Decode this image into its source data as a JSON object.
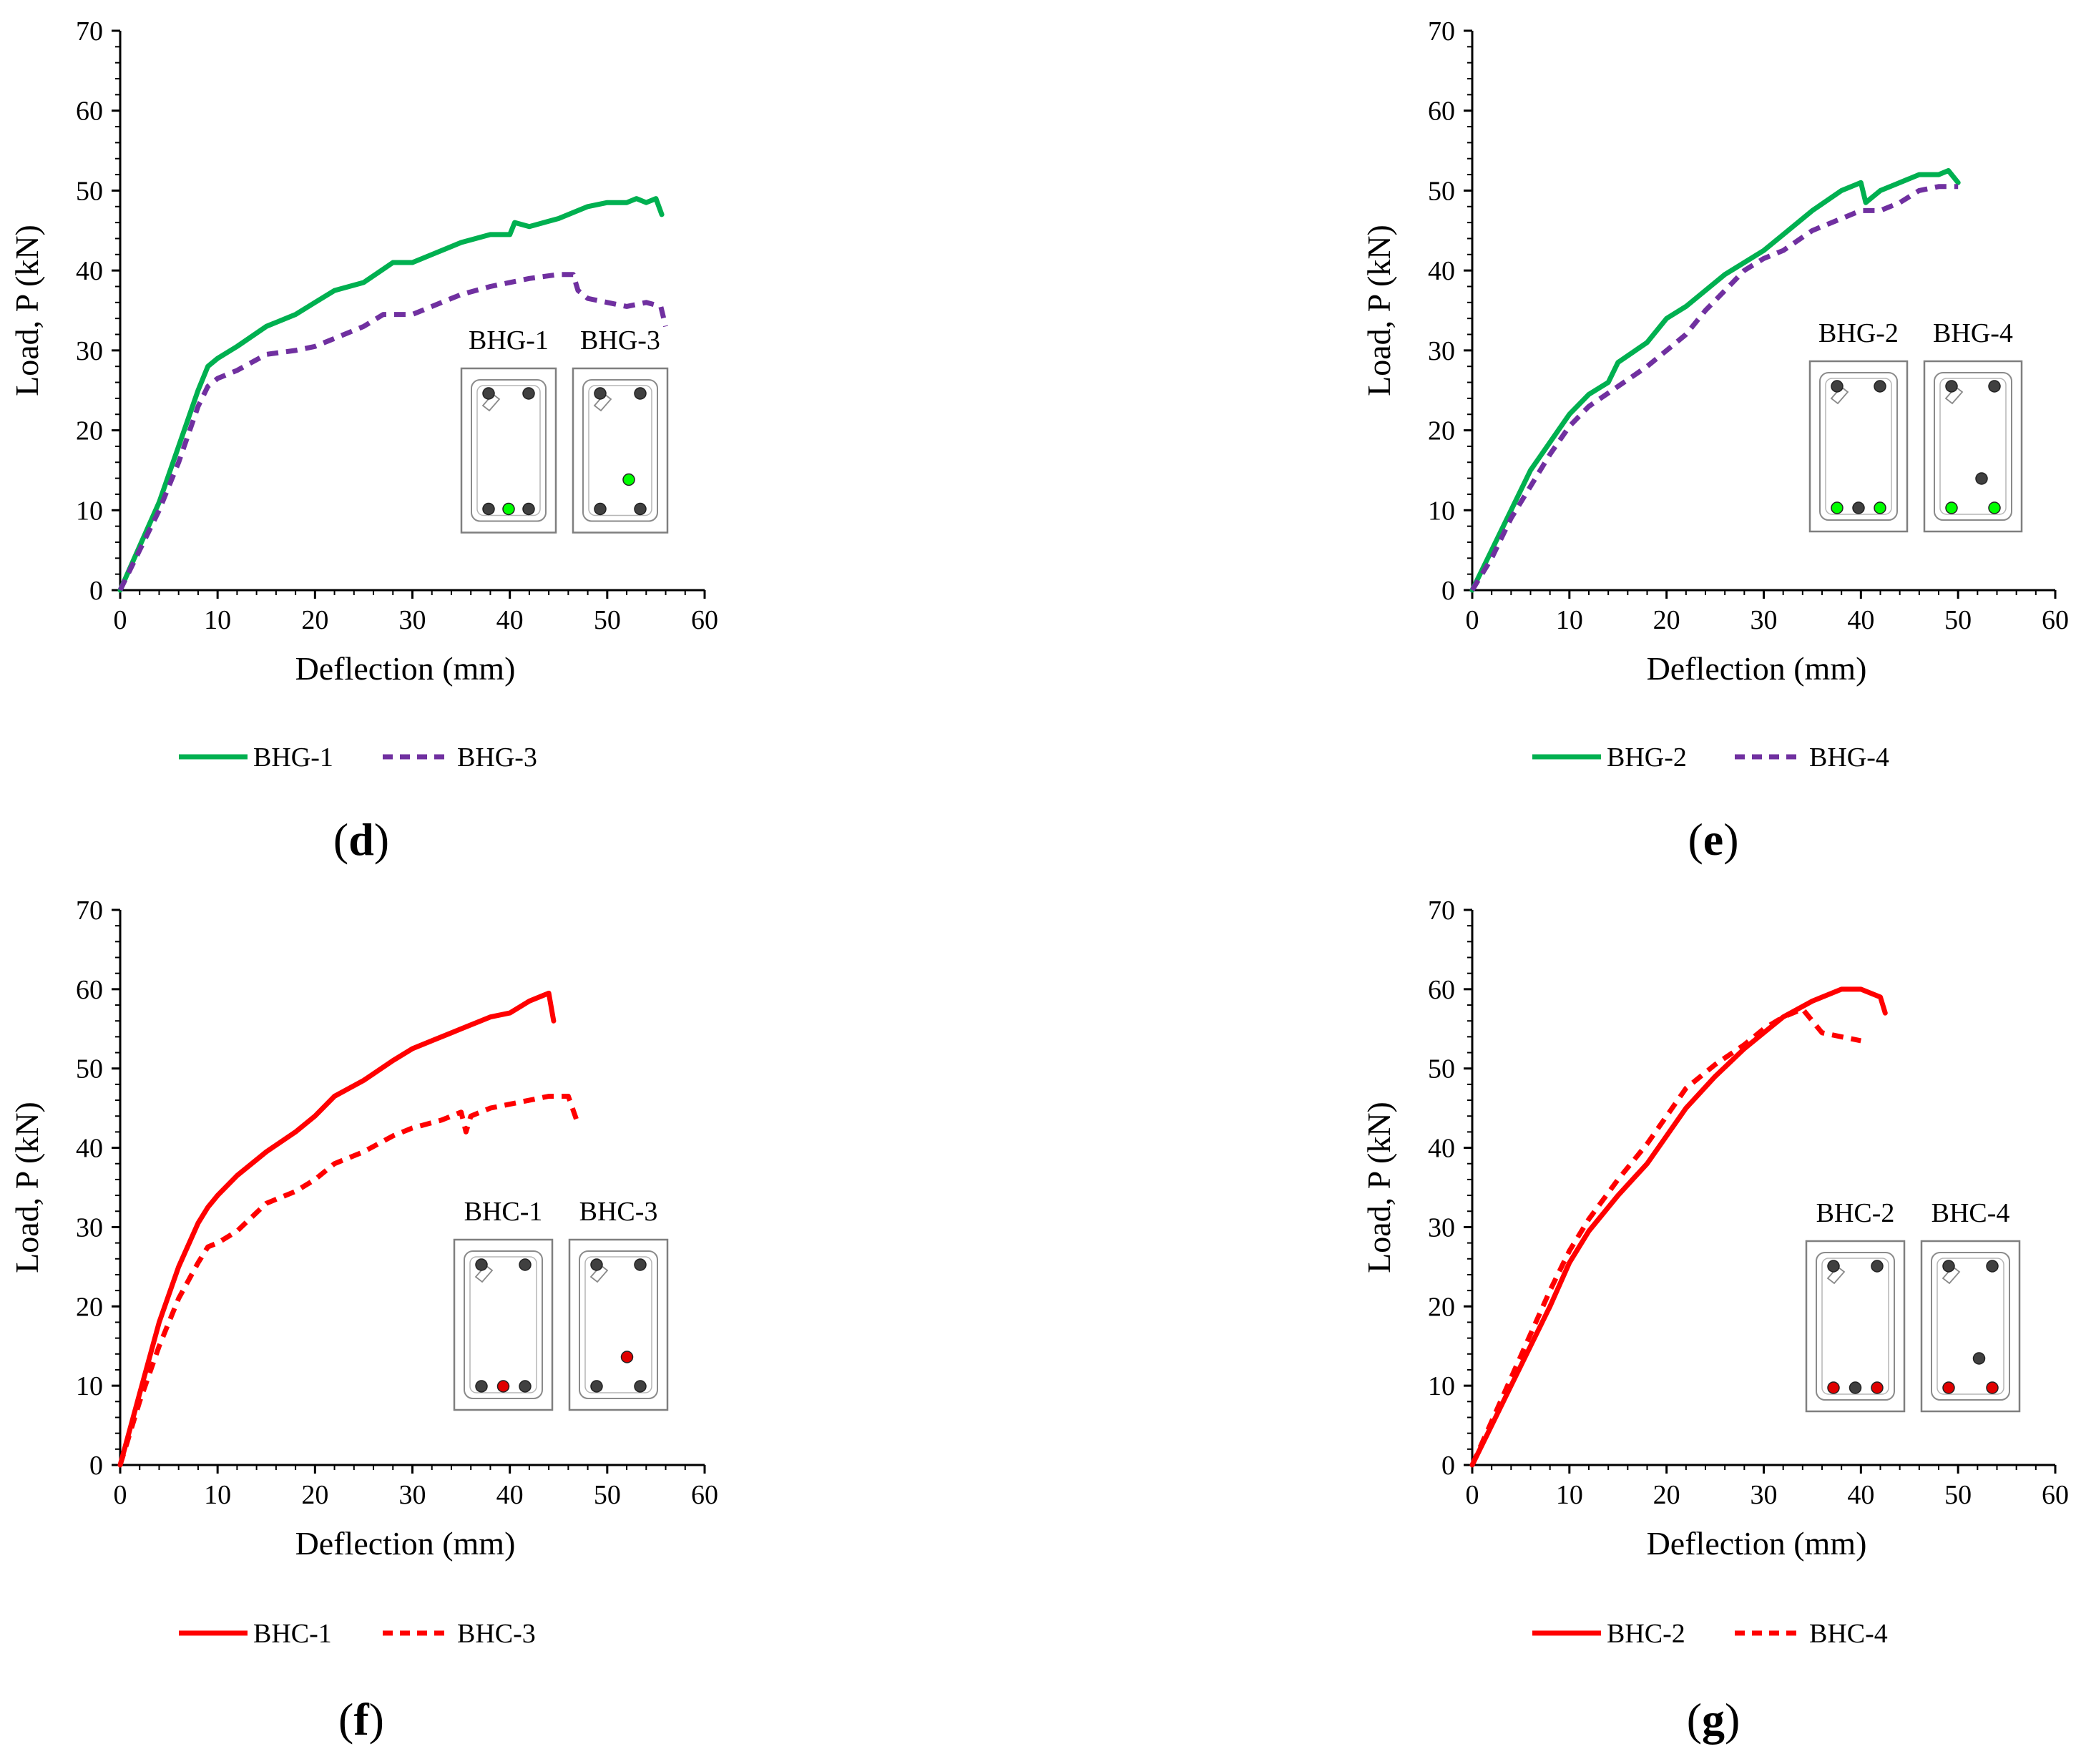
{
  "chart_data": [
    {
      "id": "d",
      "type": "line",
      "panel_label": "d",
      "xlabel": "Deflection (mm)",
      "ylabel": "Load, P (kN)",
      "xlim": [
        0,
        60
      ],
      "ylim": [
        0,
        70
      ],
      "xticks": [
        0,
        10,
        20,
        30,
        40,
        50,
        60
      ],
      "yticks": [
        0,
        10,
        20,
        30,
        40,
        50,
        60,
        70
      ],
      "legend_position": "bottom",
      "series": [
        {
          "name": "BHG-1",
          "color": "#00b050",
          "style": "solid",
          "x": [
            0,
            2,
            4,
            6,
            8,
            9,
            10,
            12,
            15,
            18,
            20,
            22,
            25,
            28,
            30,
            32,
            35,
            38,
            40,
            40.5,
            42,
            45,
            48,
            50,
            52,
            53,
            54,
            55,
            55.6
          ],
          "y": [
            0,
            5.5,
            11,
            18,
            25,
            28,
            29,
            30.5,
            33,
            34.5,
            36,
            37.5,
            38.5,
            41,
            41,
            42,
            43.5,
            44.5,
            44.5,
            46,
            45.5,
            46.5,
            48,
            48.5,
            48.5,
            49,
            48.5,
            49,
            47
          ]
        },
        {
          "name": "BHG-3",
          "color": "#7030a0",
          "style": "dashed",
          "x": [
            0,
            2,
            4,
            6,
            8,
            9,
            10,
            12,
            15,
            18,
            20,
            22,
            25,
            27,
            30,
            33,
            35,
            38,
            40,
            42,
            45,
            46.5,
            47,
            48,
            50,
            52,
            54,
            55.5,
            56
          ],
          "y": [
            0,
            5,
            10,
            16,
            23,
            25.5,
            26.5,
            27.5,
            29.5,
            30,
            30.5,
            31.5,
            33,
            34.5,
            34.5,
            36,
            37,
            38,
            38.5,
            39,
            39.5,
            39.5,
            37.5,
            36.5,
            36,
            35.5,
            36,
            35.5,
            33
          ]
        }
      ],
      "insets": [
        {
          "label": "BHG-1",
          "rows": [
            {
              "level": "top",
              "bars": [
                "dark",
                "dark"
              ]
            },
            {
              "level": "bottom",
              "bars": [
                "dark",
                "green",
                "dark"
              ]
            }
          ]
        },
        {
          "label": "BHG-3",
          "rows": [
            {
              "level": "top",
              "bars": [
                "dark",
                "dark"
              ]
            },
            {
              "level": "mid",
              "bars": [
                "green"
              ]
            },
            {
              "level": "bottom",
              "bars": [
                "dark",
                "dark"
              ]
            }
          ]
        }
      ]
    },
    {
      "id": "e",
      "type": "line",
      "panel_label": "e",
      "xlabel": "Deflection (mm)",
      "ylabel": "Load, P (kN)",
      "xlim": [
        0,
        60
      ],
      "ylim": [
        0,
        70
      ],
      "xticks": [
        0,
        10,
        20,
        30,
        40,
        50,
        60
      ],
      "yticks": [
        0,
        10,
        20,
        30,
        40,
        50,
        60,
        70
      ],
      "legend_position": "bottom",
      "series": [
        {
          "name": "BHG-2",
          "color": "#00b050",
          "style": "solid",
          "x": [
            0,
            2,
            4,
            6,
            8,
            10,
            12,
            14,
            15,
            18,
            20,
            22,
            24,
            26,
            28,
            30,
            32,
            35,
            38,
            40,
            40.5,
            42,
            44,
            46,
            48,
            49,
            50
          ],
          "y": [
            0,
            5,
            10,
            15,
            18.5,
            22,
            24.5,
            26,
            28.5,
            31,
            34,
            35.5,
            37.5,
            39.5,
            41,
            42.5,
            44.5,
            47.5,
            50,
            51,
            48.5,
            50,
            51,
            52,
            52,
            52.5,
            51
          ]
        },
        {
          "name": "BHG-4",
          "color": "#7030a0",
          "style": "dashed",
          "x": [
            0,
            2,
            4,
            6,
            8,
            10,
            12,
            15,
            18,
            20,
            22,
            24,
            26,
            28,
            30,
            32,
            35,
            38,
            40,
            42,
            44,
            46,
            48,
            50
          ],
          "y": [
            0,
            4,
            9,
            13,
            17,
            20.5,
            23,
            25.5,
            28,
            30,
            32,
            35,
            37.5,
            40,
            41.5,
            42.5,
            45,
            46.5,
            47.5,
            47.5,
            48.5,
            50,
            50.5,
            50.5
          ]
        }
      ],
      "insets": [
        {
          "label": "BHG-2",
          "rows": [
            {
              "level": "top",
              "bars": [
                "dark",
                "dark"
              ]
            },
            {
              "level": "bottom",
              "bars": [
                "green",
                "dark",
                "green"
              ]
            }
          ]
        },
        {
          "label": "BHG-4",
          "rows": [
            {
              "level": "top",
              "bars": [
                "dark",
                "dark"
              ]
            },
            {
              "level": "mid",
              "bars": [
                "dark"
              ]
            },
            {
              "level": "bottom",
              "bars": [
                "green",
                "green"
              ]
            }
          ]
        }
      ]
    },
    {
      "id": "f",
      "type": "line",
      "panel_label": "f",
      "xlabel": "Deflection (mm)",
      "ylabel": "Load, P (kN)",
      "xlim": [
        0,
        60
      ],
      "ylim": [
        0,
        70
      ],
      "xticks": [
        0,
        10,
        20,
        30,
        40,
        50,
        60
      ],
      "yticks": [
        0,
        10,
        20,
        30,
        40,
        50,
        60,
        70
      ],
      "legend_position": "bottom",
      "series": [
        {
          "name": "BHC-1",
          "color": "#ff0000",
          "style": "solid",
          "x": [
            0,
            2,
            4,
            6,
            8,
            9,
            10,
            12,
            15,
            18,
            20,
            22,
            25,
            28,
            30,
            32,
            35,
            38,
            40,
            42,
            44,
            44.5
          ],
          "y": [
            0,
            9,
            18,
            25,
            30.5,
            32.5,
            34,
            36.5,
            39.5,
            42,
            44,
            46.5,
            48.5,
            51,
            52.5,
            53.5,
            55,
            56.5,
            57,
            58.5,
            59.5,
            56
          ]
        },
        {
          "name": "BHC-3",
          "color": "#ff0000",
          "style": "dashed",
          "x": [
            0,
            2,
            4,
            6,
            8,
            9,
            10,
            12,
            15,
            18,
            20,
            22,
            25,
            28,
            30,
            33,
            35,
            35.5,
            36,
            38,
            40,
            42,
            44,
            46,
            47
          ],
          "y": [
            0,
            8,
            15,
            21,
            25.5,
            27.5,
            28,
            29.5,
            33,
            34.5,
            36,
            38,
            39.5,
            41.5,
            42.5,
            43.5,
            44.5,
            42,
            44,
            45,
            45.5,
            46,
            46.5,
            46.5,
            43
          ]
        }
      ],
      "insets": [
        {
          "label": "BHC-1",
          "rows": [
            {
              "level": "top",
              "bars": [
                "dark",
                "dark"
              ]
            },
            {
              "level": "bottom",
              "bars": [
                "dark",
                "red",
                "dark"
              ]
            }
          ]
        },
        {
          "label": "BHC-3",
          "rows": [
            {
              "level": "top",
              "bars": [
                "dark",
                "dark"
              ]
            },
            {
              "level": "mid",
              "bars": [
                "red"
              ]
            },
            {
              "level": "bottom",
              "bars": [
                "dark",
                "dark"
              ]
            }
          ]
        }
      ]
    },
    {
      "id": "g",
      "type": "line",
      "panel_label": "g",
      "xlabel": "Deflection (mm)",
      "ylabel": "Load, P (kN)",
      "xlim": [
        0,
        60
      ],
      "ylim": [
        0,
        70
      ],
      "xticks": [
        0,
        10,
        20,
        30,
        40,
        50,
        60
      ],
      "yticks": [
        0,
        10,
        20,
        30,
        40,
        50,
        60,
        70
      ],
      "legend_position": "bottom",
      "series": [
        {
          "name": "BHC-2",
          "color": "#ff0000",
          "style": "solid",
          "x": [
            0,
            2,
            4,
            6,
            8,
            10,
            12,
            15,
            18,
            20,
            22,
            25,
            28,
            30,
            32,
            35,
            38,
            40,
            42,
            42.5
          ],
          "y": [
            0,
            5,
            10,
            15,
            20,
            25.5,
            29.5,
            34,
            38,
            41.5,
            45,
            49,
            52.5,
            54.5,
            56.5,
            58.5,
            60,
            60,
            59,
            57
          ]
        },
        {
          "name": "BHC-4",
          "color": "#ff0000",
          "style": "dashed",
          "x": [
            0,
            2,
            4,
            6,
            8,
            10,
            12,
            15,
            18,
            20,
            22,
            25,
            28,
            30,
            32,
            34,
            35,
            36,
            38,
            40
          ],
          "y": [
            0,
            5.5,
            11,
            16.5,
            22,
            27,
            31,
            36,
            40.5,
            44,
            47.5,
            50.5,
            53,
            55,
            56.5,
            57.5,
            56,
            54.5,
            54,
            53.5
          ]
        }
      ],
      "insets": [
        {
          "label": "BHC-2",
          "rows": [
            {
              "level": "top",
              "bars": [
                "dark",
                "dark"
              ]
            },
            {
              "level": "bottom",
              "bars": [
                "red",
                "dark",
                "red"
              ]
            }
          ]
        },
        {
          "label": "BHC-4",
          "rows": [
            {
              "level": "top",
              "bars": [
                "dark",
                "dark"
              ]
            },
            {
              "level": "mid",
              "bars": [
                "dark"
              ]
            },
            {
              "level": "bottom",
              "bars": [
                "red",
                "red"
              ]
            }
          ]
        }
      ]
    }
  ],
  "colors": {
    "green_series": "#00b050",
    "purple_series": "#7030a0",
    "red_series": "#ff0000",
    "bar_dark": "#404040",
    "bar_green": "#00ff00",
    "bar_red": "#e00000",
    "axis": "#000000"
  }
}
